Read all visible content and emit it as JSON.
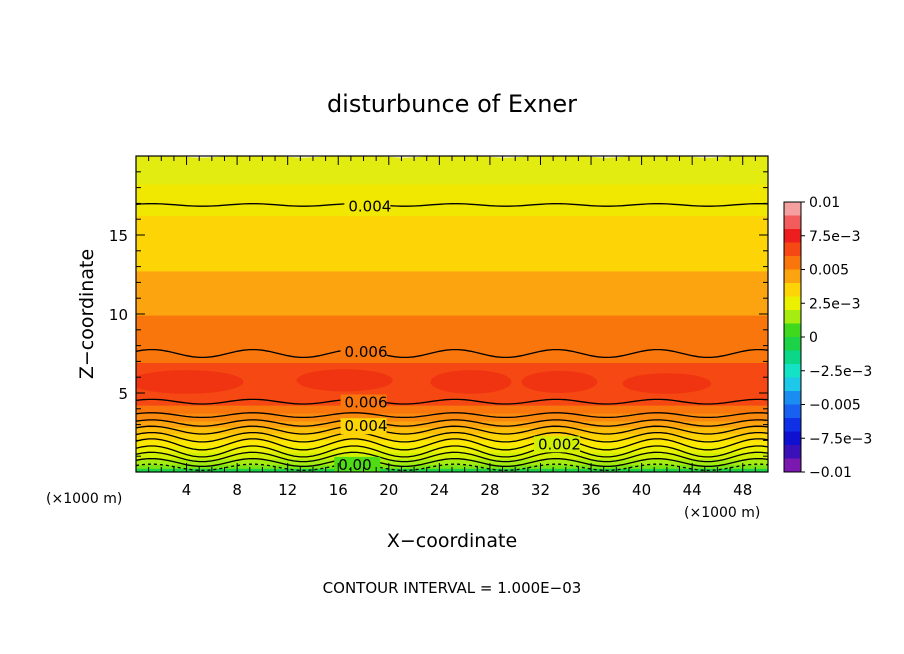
{
  "chart_data": {
    "type": "heatmap",
    "title": "disturbunce of Exner",
    "xlabel": "X−coordinate",
    "ylabel": "Z−coordinate",
    "x_unit": "(×1000 m)",
    "y_unit": "(×1000 m)",
    "xlim": [
      0,
      50
    ],
    "ylim": [
      0,
      20
    ],
    "x_ticks": [
      4,
      8,
      12,
      16,
      20,
      24,
      28,
      32,
      36,
      40,
      44,
      48
    ],
    "y_ticks": [
      5,
      10,
      15
    ],
    "footer": "CONTOUR INTERVAL = 1.000E−03",
    "colorbar": {
      "min": -0.01,
      "max": 0.01,
      "labels": [
        {
          "value": 0.01,
          "text": "0.01"
        },
        {
          "value": 0.0075,
          "text": "7.5e−3"
        },
        {
          "value": 0.005,
          "text": "0.005"
        },
        {
          "value": 0.0025,
          "text": "2.5e−3"
        },
        {
          "value": 0,
          "text": "0"
        },
        {
          "value": -0.0025,
          "text": "−2.5e−3"
        },
        {
          "value": -0.005,
          "text": "−0.005"
        },
        {
          "value": -0.0075,
          "text": "−7.5e−3"
        },
        {
          "value": -0.01,
          "text": "−0.01"
        }
      ],
      "levels": [
        {
          "from": 0.009,
          "to": 0.01,
          "color": "#f4a0a0"
        },
        {
          "from": 0.008,
          "to": 0.009,
          "color": "#f25c5c"
        },
        {
          "from": 0.007,
          "to": 0.008,
          "color": "#ee1e1e"
        },
        {
          "from": 0.006,
          "to": 0.007,
          "color": "#f54812"
        },
        {
          "from": 0.005,
          "to": 0.006,
          "color": "#f8760c"
        },
        {
          "from": 0.004,
          "to": 0.005,
          "color": "#fba410"
        },
        {
          "from": 0.003,
          "to": 0.004,
          "color": "#fdd406"
        },
        {
          "from": 0.002,
          "to": 0.003,
          "color": "#eaf000"
        },
        {
          "from": 0.001,
          "to": 0.002,
          "color": "#a6ec10"
        },
        {
          "from": 0.0,
          "to": 0.001,
          "color": "#3ed81c"
        },
        {
          "from": -0.001,
          "to": 0.0,
          "color": "#1cd246"
        },
        {
          "from": -0.002,
          "to": -0.001,
          "color": "#0ad888"
        },
        {
          "from": -0.003,
          "to": -0.002,
          "color": "#14e2c4"
        },
        {
          "from": -0.004,
          "to": -0.003,
          "color": "#1ec8e8"
        },
        {
          "from": -0.005,
          "to": -0.004,
          "color": "#1a8ef0"
        },
        {
          "from": -0.006,
          "to": -0.005,
          "color": "#1860f0"
        },
        {
          "from": -0.007,
          "to": -0.006,
          "color": "#1030e8"
        },
        {
          "from": -0.008,
          "to": -0.007,
          "color": "#1010d0"
        },
        {
          "from": -0.009,
          "to": -0.008,
          "color": "#3a10b8"
        },
        {
          "from": -0.01,
          "to": -0.009,
          "color": "#7a18b0"
        }
      ]
    },
    "field_bands": [
      {
        "z_from": 0.0,
        "z_to": 0.2,
        "level": 0.0,
        "color": "#1cd246"
      },
      {
        "z_from": 0.2,
        "z_to": 0.45,
        "level": 0.0005,
        "color": "#3ed81c"
      },
      {
        "z_from": 0.45,
        "z_to": 0.75,
        "level": 0.001,
        "color": "#4fdc14"
      },
      {
        "z_from": 0.75,
        "z_to": 1.05,
        "level": 0.0015,
        "color": "#7ce410"
      },
      {
        "z_from": 1.05,
        "z_to": 1.4,
        "level": 0.002,
        "color": "#a6ec10"
      },
      {
        "z_from": 1.4,
        "z_to": 1.8,
        "level": 0.0025,
        "color": "#d0f000"
      },
      {
        "z_from": 1.8,
        "z_to": 2.2,
        "level": 0.003,
        "color": "#eaf000"
      },
      {
        "z_from": 2.2,
        "z_to": 2.6,
        "level": 0.0035,
        "color": "#fde800"
      },
      {
        "z_from": 2.6,
        "z_to": 3.0,
        "level": 0.004,
        "color": "#fdd406"
      },
      {
        "z_from": 3.0,
        "z_to": 3.4,
        "level": 0.0045,
        "color": "#fdbe0a"
      },
      {
        "z_from": 3.4,
        "z_to": 3.8,
        "level": 0.005,
        "color": "#fba410"
      },
      {
        "z_from": 3.8,
        "z_to": 4.3,
        "level": 0.0055,
        "color": "#f98a0e"
      },
      {
        "z_from": 4.3,
        "z_to": 4.8,
        "level": 0.006,
        "color": "#f8760c"
      },
      {
        "z_from": 4.8,
        "z_to": 7.5,
        "level": 0.0065,
        "color": "#f54812"
      },
      {
        "z_from": 7.5,
        "z_to": 10.5,
        "level": 0.0055,
        "color": "#f8760c"
      },
      {
        "z_from": 10.5,
        "z_to": 13.3,
        "level": 0.0045,
        "color": "#fba410"
      },
      {
        "z_from": 13.3,
        "z_to": 16.8,
        "level": 0.0035,
        "color": "#fdd406"
      },
      {
        "z_from": 16.8,
        "z_to": 18.8,
        "level": 0.0025,
        "color": "#f0e800"
      },
      {
        "z_from": 18.8,
        "z_to": 20.0,
        "level": 0.002,
        "color": "#e2ec10"
      }
    ],
    "blobs": [
      {
        "x": 4,
        "z": 5.7,
        "rx": 4.5,
        "rz": 0.75
      },
      {
        "x": 16.5,
        "z": 5.8,
        "rx": 3.8,
        "rz": 0.7
      },
      {
        "x": 26.5,
        "z": 5.7,
        "rx": 3.2,
        "rz": 0.75
      },
      {
        "x": 33.5,
        "z": 5.7,
        "rx": 3.0,
        "rz": 0.7
      },
      {
        "x": 42,
        "z": 5.6,
        "rx": 3.5,
        "rz": 0.65
      }
    ],
    "contours": [
      {
        "z": 0.3,
        "amp": 0.2,
        "style": "dashed"
      },
      {
        "z": 0.6,
        "amp": 0.25,
        "style": "solid"
      },
      {
        "z": 0.95,
        "amp": 0.3,
        "style": "solid"
      },
      {
        "z": 1.3,
        "amp": 0.35,
        "style": "solid"
      },
      {
        "z": 1.75,
        "amp": 0.35,
        "style": "solid"
      },
      {
        "z": 2.2,
        "amp": 0.3,
        "style": "solid"
      },
      {
        "z": 2.65,
        "amp": 0.25,
        "style": "solid"
      },
      {
        "z": 3.1,
        "amp": 0.2,
        "style": "solid"
      },
      {
        "z": 3.6,
        "amp": 0.15,
        "style": "solid"
      },
      {
        "z": 4.45,
        "amp": 0.15,
        "style": "solid"
      },
      {
        "z": 7.5,
        "amp": 0.25,
        "style": "solid"
      },
      {
        "z": 16.9,
        "amp": 0.08,
        "style": "solid"
      }
    ],
    "contour_labels": [
      {
        "text": "0.004",
        "x": 16.8,
        "z": 16.8
      },
      {
        "text": "0.006",
        "x": 16.5,
        "z": 7.6
      },
      {
        "text": "0.006",
        "x": 16.5,
        "z": 4.4
      },
      {
        "text": "0.004",
        "x": 16.5,
        "z": 2.9
      },
      {
        "text": "0.002",
        "x": 31.8,
        "z": 1.75
      },
      {
        "text": "0.00",
        "x": 16.0,
        "z": 0.45
      }
    ]
  }
}
